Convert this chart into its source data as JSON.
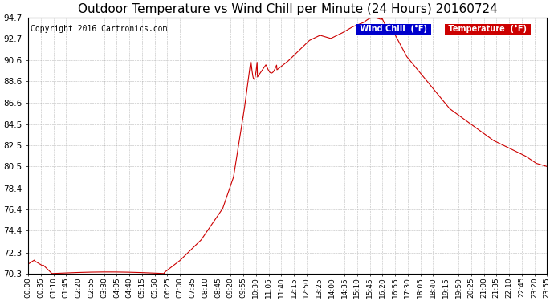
{
  "title": "Outdoor Temperature vs Wind Chill per Minute (24 Hours) 20160724",
  "copyright": "Copyright 2016 Cartronics.com",
  "ylim": [
    70.3,
    94.7
  ],
  "yticks": [
    70.3,
    72.3,
    74.4,
    76.4,
    78.4,
    80.5,
    82.5,
    84.5,
    86.6,
    88.6,
    90.6,
    92.7,
    94.7
  ],
  "line_color": "#cc0000",
  "legend_wind_chill_bg": "#0000cc",
  "legend_temp_bg": "#cc0000",
  "legend_text_color": "#ffffff",
  "bg_color": "#ffffff",
  "grid_color": "#aaaaaa",
  "title_fontsize": 11,
  "copyright_fontsize": 7,
  "x_label_fontsize": 6.5,
  "y_label_fontsize": 7.5,
  "xtick_labels": [
    "00:00",
    "00:35",
    "01:10",
    "01:45",
    "02:20",
    "02:55",
    "03:30",
    "04:05",
    "04:40",
    "05:15",
    "05:50",
    "06:25",
    "07:00",
    "07:35",
    "08:10",
    "08:45",
    "09:20",
    "09:55",
    "10:30",
    "11:05",
    "11:40",
    "12:15",
    "12:50",
    "13:25",
    "14:00",
    "14:35",
    "15:10",
    "15:45",
    "16:20",
    "16:55",
    "17:30",
    "18:05",
    "18:40",
    "19:15",
    "19:50",
    "20:25",
    "21:00",
    "21:35",
    "22:10",
    "22:45",
    "23:20",
    "23:55"
  ]
}
